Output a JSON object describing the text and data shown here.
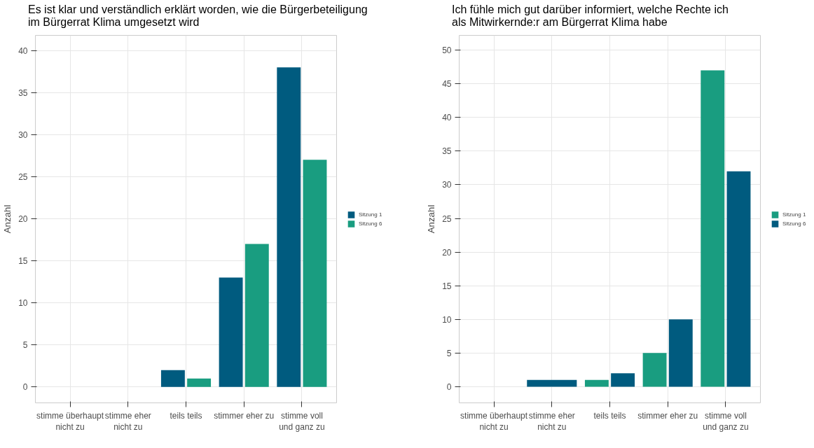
{
  "chart_data": [
    {
      "type": "bar",
      "title": "Es ist klar und verständlich erklärt worden, wie die Bürgerbeteiligung\nim Bürgerrat Klima umgesetzt wird",
      "ylabel": "Anzahl",
      "categories": [
        "stimme überhaupt\nnicht zu",
        "stimme eher\nnicht zu",
        "teils teils",
        "stimmer eher zu",
        "stimme voll\nund ganz zu"
      ],
      "series": [
        {
          "name": "Sitzung 1",
          "color": "#005b7f",
          "values": [
            null,
            null,
            2,
            13,
            38
          ]
        },
        {
          "name": "Sitzung 6",
          "color": "#199d80",
          "values": [
            null,
            null,
            1,
            17,
            27
          ]
        }
      ],
      "ylim": [
        -1.9,
        41.8
      ],
      "yticks": [
        0,
        5,
        10,
        15,
        20,
        25,
        30,
        35,
        40
      ],
      "grid": true,
      "legend": "right"
    },
    {
      "type": "bar",
      "title": "Ich fühle mich gut darüber informiert, welche Rechte ich\nals Mitwirkernde:r am Bürgerrat Klima habe",
      "ylabel": "Anzahl",
      "categories": [
        "stimme überhaupt\nnicht zu",
        "stimme eher\nnicht zu",
        "teils teils",
        "stimmer eher zu",
        "stimme voll\nund ganz zu"
      ],
      "series": [
        {
          "name": "Sitzung 1",
          "color": "#199d80",
          "values": [
            null,
            null,
            1,
            5,
            47
          ]
        },
        {
          "name": "Sitzung 6",
          "color": "#005b7f",
          "values": [
            null,
            1,
            2,
            10,
            32
          ]
        }
      ],
      "ylim": [
        -2.4,
        52.2
      ],
      "yticks": [
        0,
        5,
        10,
        15,
        20,
        25,
        30,
        35,
        40,
        45,
        50
      ],
      "grid": true,
      "legend": "right"
    }
  ]
}
